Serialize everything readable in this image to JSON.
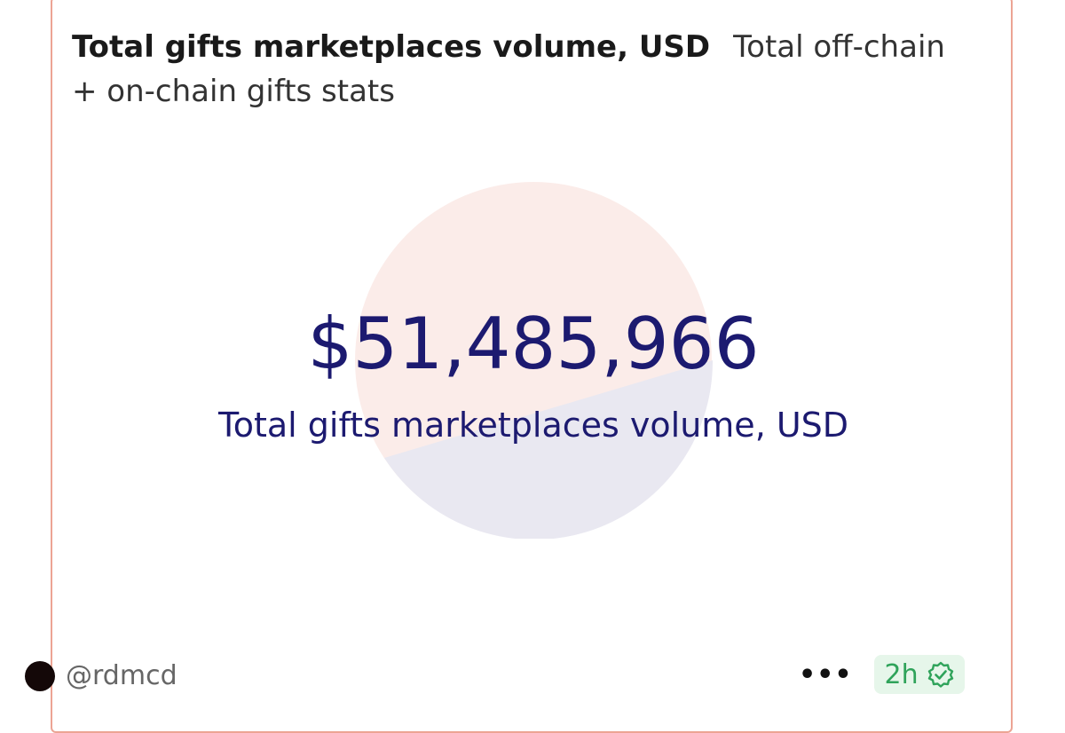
{
  "header": {
    "title": "Total gifts marketplaces volume, USD",
    "description": "Total off-chain + on-chain gifts stats"
  },
  "metric": {
    "value": "$51,485,966",
    "label": "Total gifts marketplaces volume, USD"
  },
  "footer": {
    "handle": "@rdmcd",
    "more": "•••",
    "time": "2h"
  },
  "colors": {
    "card_border": "#eca494",
    "circle_top": "#fbece9",
    "circle_bottom": "#e9e8f1",
    "metric_text": "#1c1a70",
    "badge_bg": "#e6f6ea",
    "badge_text": "#2fa35a"
  },
  "icons": {
    "verified": "verified-check-badge-icon",
    "avatar": "avatar"
  }
}
